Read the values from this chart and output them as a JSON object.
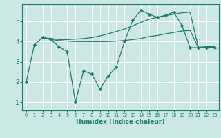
{
  "xlabel": "Humidex (Indice chaleur)",
  "bg_color": "#cce8e4",
  "grid_color": "#ffffff",
  "line_color": "#1a7a6e",
  "xlim": [
    -0.5,
    23.5
  ],
  "ylim": [
    0.6,
    5.85
  ],
  "yticks": [
    1,
    2,
    3,
    4,
    5
  ],
  "xticks": [
    0,
    1,
    2,
    3,
    4,
    5,
    6,
    7,
    8,
    9,
    10,
    11,
    12,
    13,
    14,
    15,
    16,
    17,
    18,
    19,
    20,
    21,
    22,
    23
  ],
  "line1_x": [
    0,
    1,
    2,
    3,
    4,
    5,
    6,
    7,
    8,
    9,
    10,
    11,
    12,
    13,
    14,
    15,
    16,
    17,
    18,
    19,
    20,
    21,
    22,
    23
  ],
  "line1_y": [
    2.0,
    3.85,
    4.2,
    4.1,
    3.75,
    3.5,
    1.0,
    2.55,
    2.4,
    1.65,
    2.3,
    2.75,
    4.0,
    5.05,
    5.55,
    5.35,
    5.2,
    5.3,
    5.45,
    4.8,
    3.7,
    3.7,
    3.7,
    3.7
  ],
  "line2_x": [
    2,
    3,
    4,
    5,
    6,
    7,
    8,
    9,
    10,
    11,
    12,
    13,
    14,
    15,
    16,
    17,
    18,
    19,
    20,
    21,
    22,
    23
  ],
  "line2_y": [
    4.2,
    4.1,
    4.05,
    4.02,
    4.0,
    4.0,
    4.0,
    4.0,
    4.0,
    4.02,
    4.05,
    4.1,
    4.15,
    4.25,
    4.3,
    4.38,
    4.45,
    4.52,
    4.55,
    3.7,
    3.72,
    3.72
  ],
  "line3_x": [
    2,
    3,
    4,
    5,
    6,
    7,
    8,
    9,
    10,
    11,
    12,
    13,
    14,
    15,
    16,
    17,
    18,
    19,
    20,
    21,
    22,
    23
  ],
  "line3_y": [
    4.2,
    4.15,
    4.1,
    4.1,
    4.12,
    4.15,
    4.2,
    4.28,
    4.38,
    4.5,
    4.62,
    4.78,
    4.95,
    5.1,
    5.2,
    5.28,
    5.35,
    5.42,
    5.45,
    3.72,
    3.75,
    3.75
  ]
}
